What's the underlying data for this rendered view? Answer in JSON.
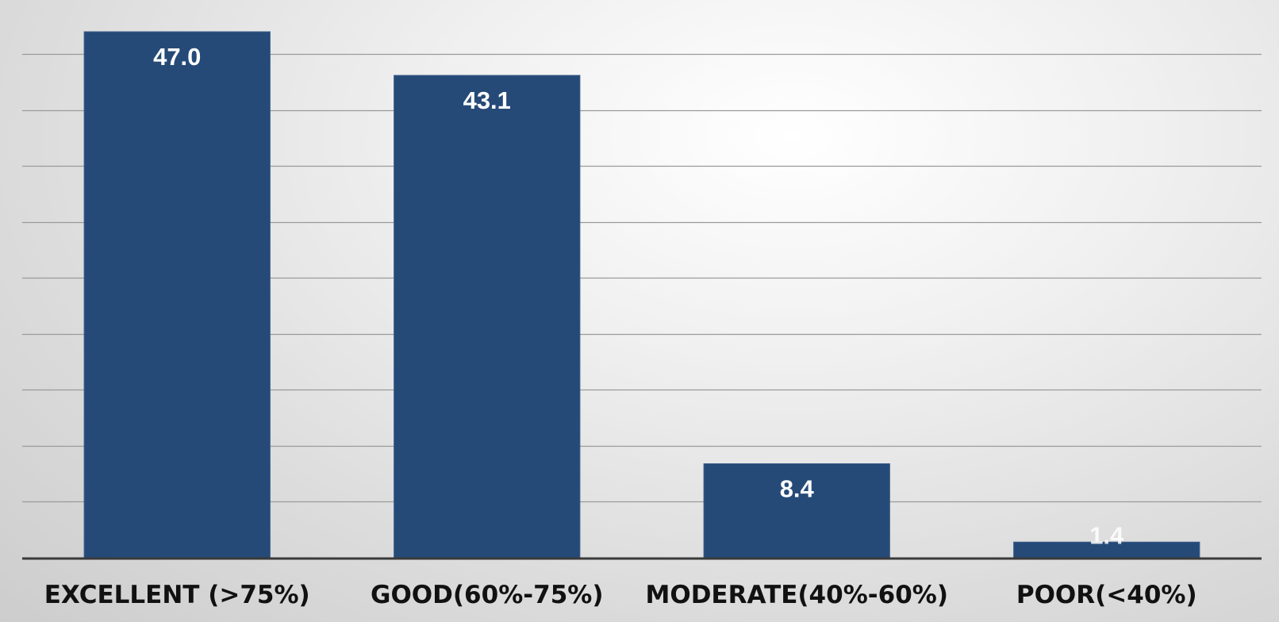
{
  "chart_data": {
    "type": "bar",
    "title": "",
    "xlabel": "",
    "ylabel": "",
    "categories": [
      "EXCELLENT (>75%)",
      "GOOD(60%-75%)",
      "MODERATE(40%-60%)",
      "POOR(<40%)"
    ],
    "values": [
      47.0,
      43.1,
      8.4,
      1.4
    ],
    "value_labels": [
      "47.0",
      "43.1",
      "8.4",
      "1.4"
    ],
    "ylim": [
      0,
      50
    ],
    "grid": true,
    "legend": "none",
    "colors": {
      "bar": "#264a77",
      "bar_edge": "#3b5f8d",
      "value_label": "#ffffff",
      "category_label": "#111111",
      "gridline": "#9a9a9a",
      "axis": "#3a3a3a"
    }
  }
}
